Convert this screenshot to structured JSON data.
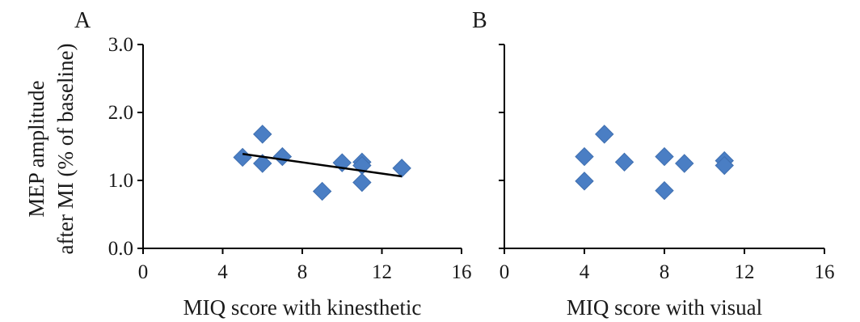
{
  "chart_data": [
    {
      "type": "scatter",
      "panel_label": "A",
      "xlabel": "MIQ score with kinesthetic",
      "ylabel_lines": [
        "MEP amplitude",
        "after MI (% of baseline)"
      ],
      "xlim": [
        0,
        16
      ],
      "ylim": [
        0,
        3
      ],
      "x_ticks": [
        0,
        4,
        8,
        12,
        16
      ],
      "y_ticks": [
        0,
        1,
        2,
        3
      ],
      "y_tick_labels": [
        "0.0",
        "1.0",
        "2.0",
        "3.0"
      ],
      "points": [
        {
          "x": 5,
          "y": 1.34
        },
        {
          "x": 6,
          "y": 1.68
        },
        {
          "x": 6,
          "y": 1.25
        },
        {
          "x": 7,
          "y": 1.35
        },
        {
          "x": 9,
          "y": 0.84
        },
        {
          "x": 10,
          "y": 1.26
        },
        {
          "x": 11,
          "y": 1.27
        },
        {
          "x": 11,
          "y": 1.22
        },
        {
          "x": 11,
          "y": 0.97
        },
        {
          "x": 13,
          "y": 1.18
        }
      ],
      "trendline": {
        "x": [
          5,
          13
        ],
        "y": [
          1.39,
          1.06
        ]
      },
      "grid": false
    },
    {
      "type": "scatter",
      "panel_label": "B",
      "xlabel": "MIQ score with visual",
      "xlim": [
        0,
        16
      ],
      "ylim": [
        0,
        3
      ],
      "x_ticks": [
        0,
        4,
        8,
        12,
        16
      ],
      "y_ticks": [
        0,
        1,
        2,
        3
      ],
      "points": [
        {
          "x": 4,
          "y": 1.35
        },
        {
          "x": 4,
          "y": 0.99
        },
        {
          "x": 5,
          "y": 1.68
        },
        {
          "x": 6,
          "y": 1.27
        },
        {
          "x": 8,
          "y": 1.35
        },
        {
          "x": 8,
          "y": 0.85
        },
        {
          "x": 9,
          "y": 1.25
        },
        {
          "x": 11,
          "y": 1.29
        },
        {
          "x": 11,
          "y": 1.22
        }
      ],
      "grid": false
    }
  ]
}
